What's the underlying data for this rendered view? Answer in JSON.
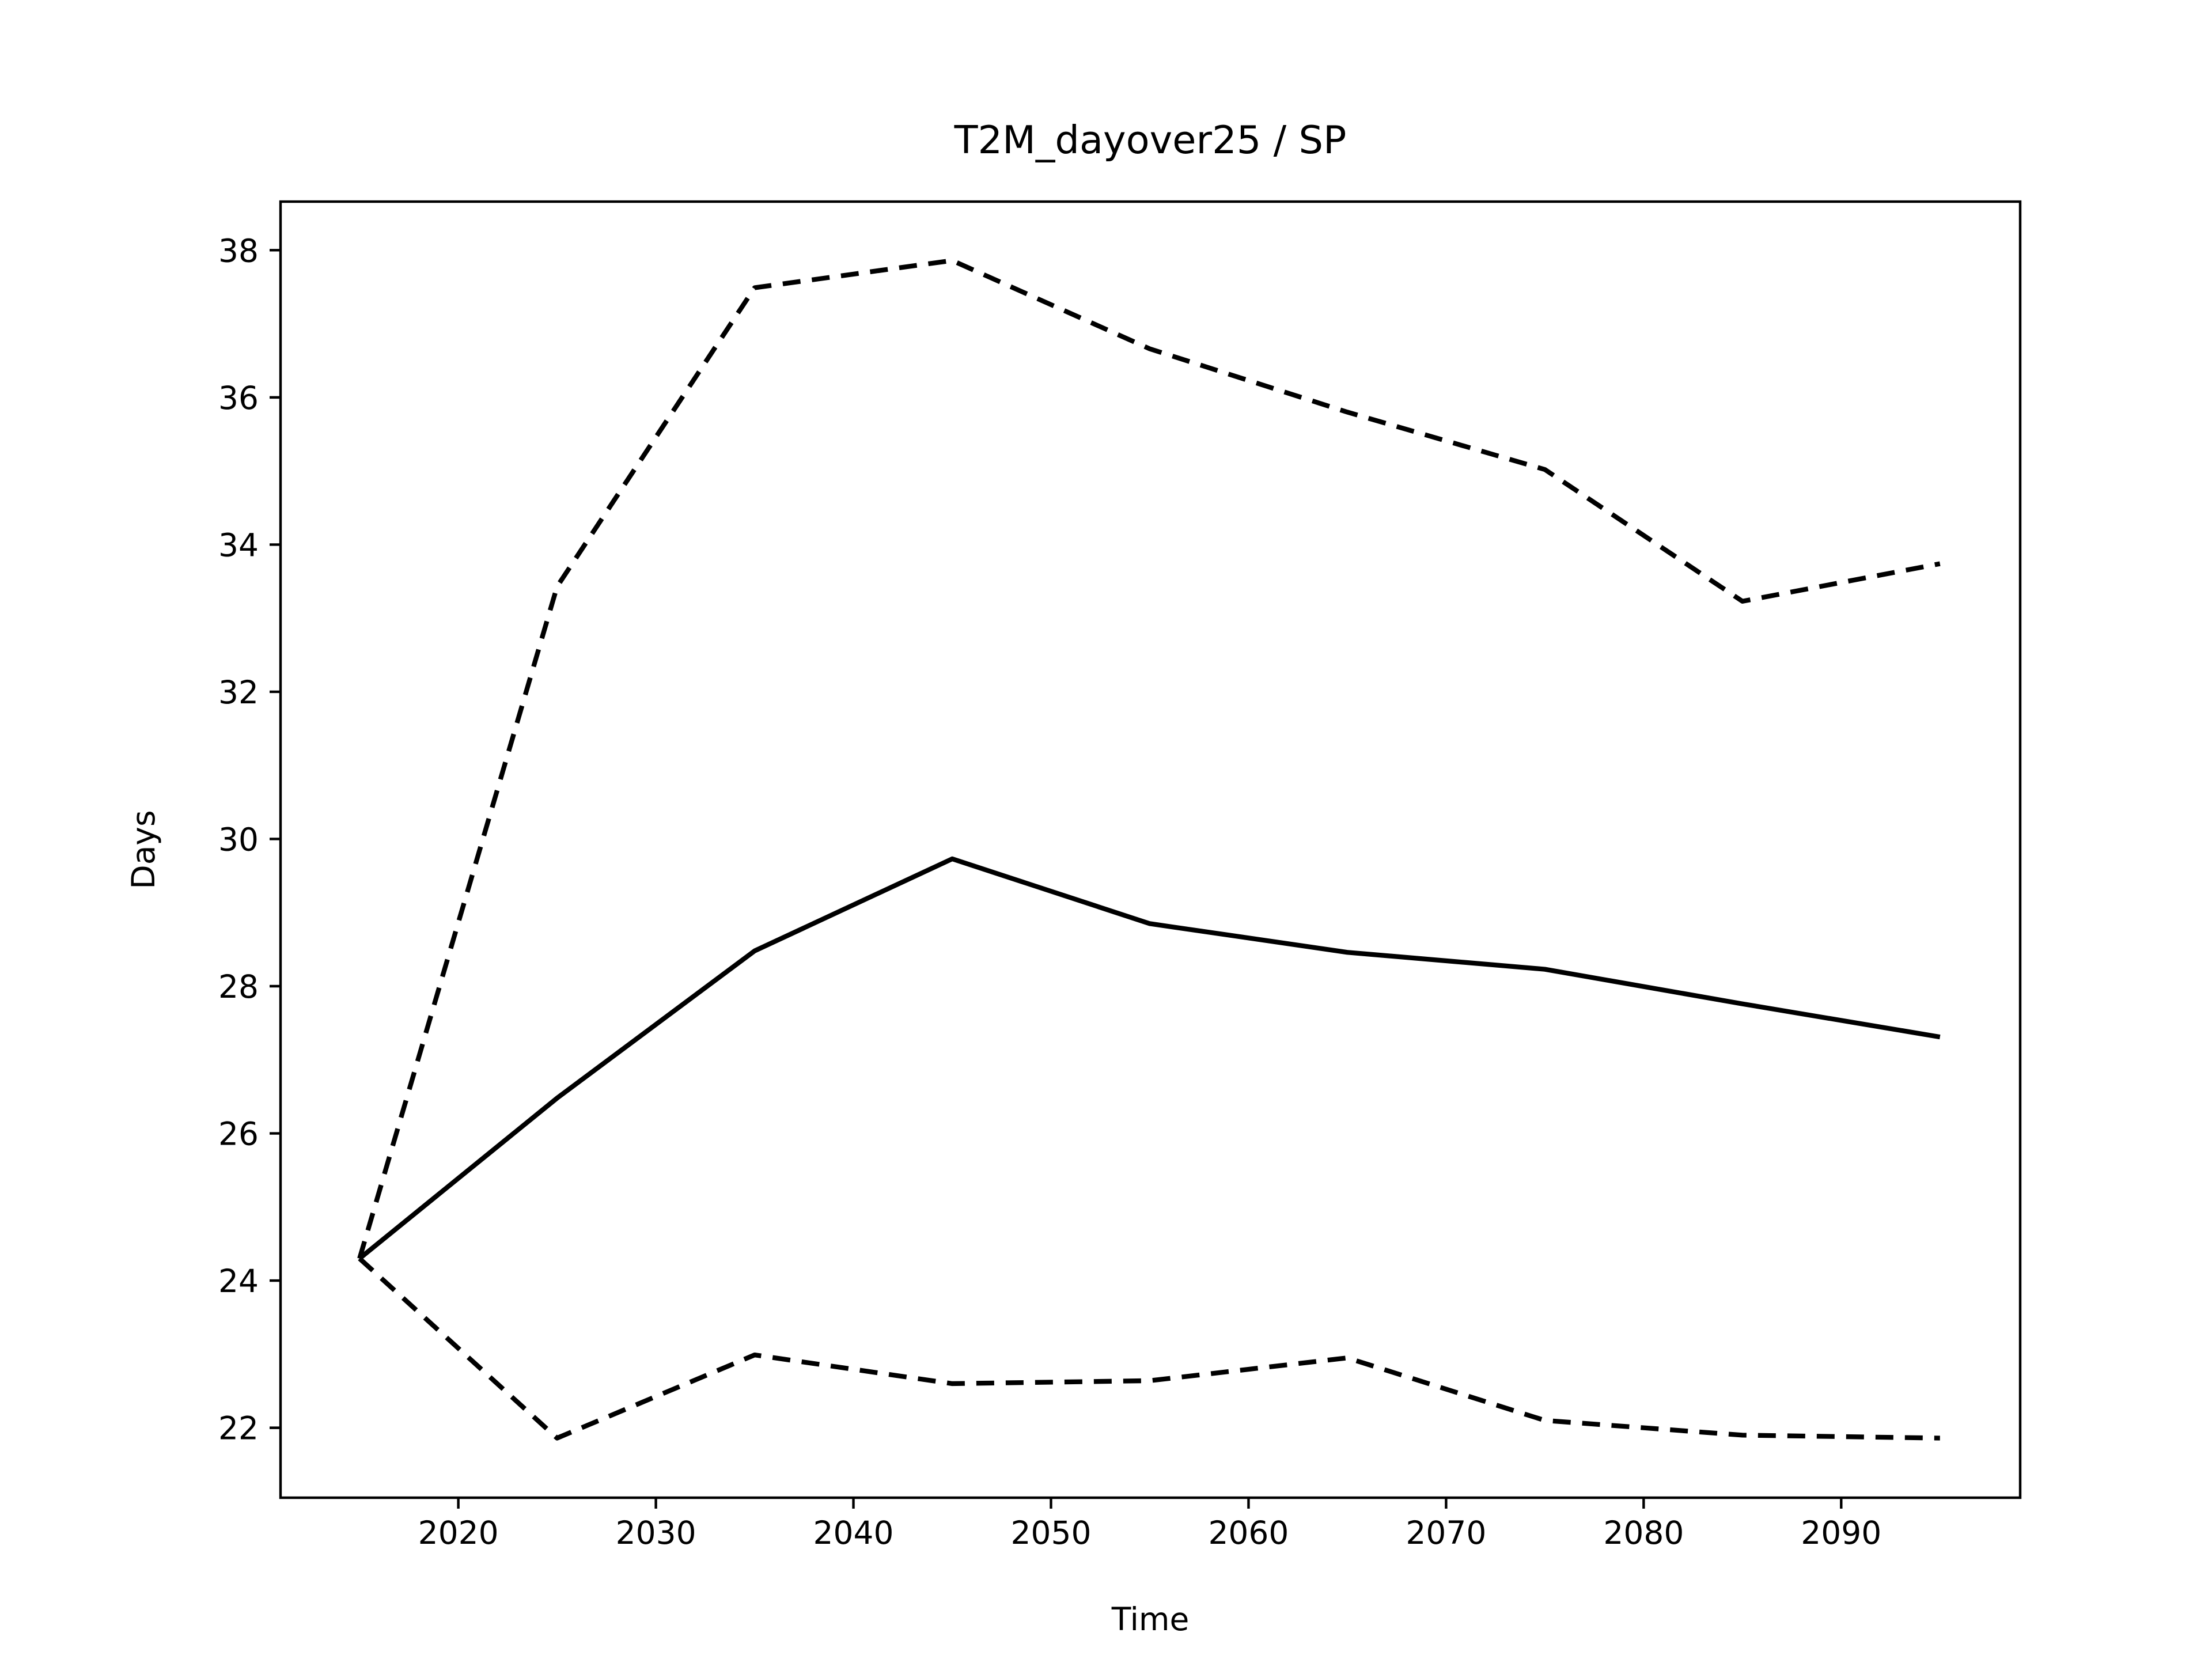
{
  "chart_data": {
    "type": "line",
    "title": "T2M_dayover25 / SP",
    "xlabel": "Time",
    "ylabel": "Days",
    "x": [
      2015,
      2025,
      2035,
      2045,
      2055,
      2065,
      2075,
      2085,
      2095
    ],
    "series": [
      {
        "color": "#000000",
        "style": "solid",
        "values": [
          24.3,
          26.48,
          28.48,
          29.73,
          28.85,
          28.46,
          28.23,
          27.76,
          27.31
        ]
      },
      {
        "color": "#000000",
        "style": "dashed",
        "values": [
          24.3,
          33.43,
          37.49,
          37.86,
          36.66,
          35.8,
          35.02,
          33.23,
          33.74
        ]
      },
      {
        "color": "#000000",
        "style": "dashed",
        "values": [
          24.3,
          21.86,
          22.99,
          22.6,
          22.64,
          22.95,
          22.1,
          21.9,
          21.86
        ]
      }
    ],
    "xlim": [
      2011.0,
      2099.06
    ],
    "xticks": [
      2020,
      2030,
      2040,
      2050,
      2060,
      2070,
      2080,
      2090
    ],
    "ylim": [
      21.05,
      38.66
    ],
    "yticks": [
      22,
      24,
      26,
      28,
      30,
      32,
      34,
      36,
      38
    ],
    "grid": false
  }
}
